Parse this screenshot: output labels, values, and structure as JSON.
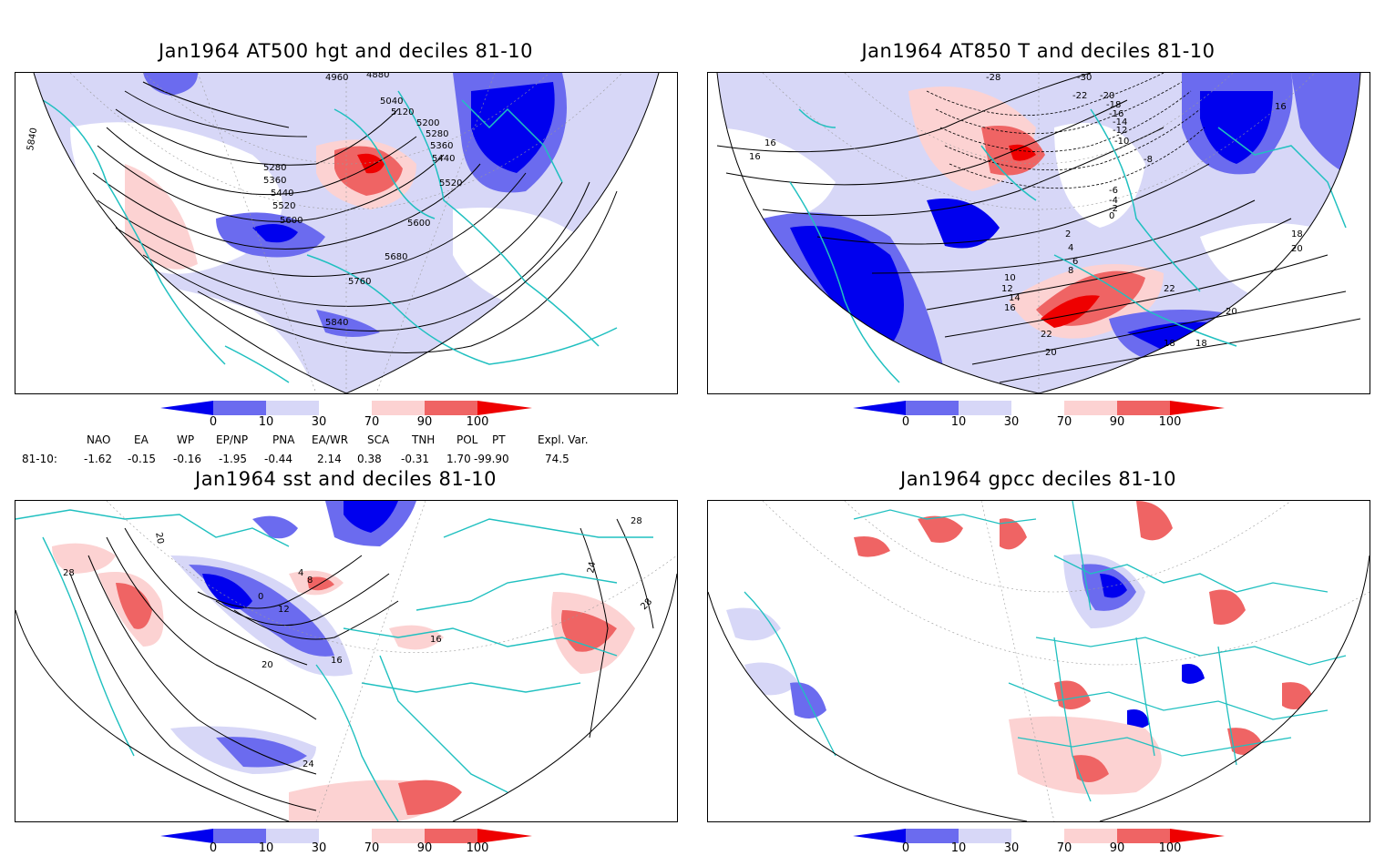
{
  "panels": {
    "top_left": {
      "title": "Jan1964 AT500 hgt and deciles 81-10",
      "contour_labels": [
        "4960",
        "4880",
        "5040",
        "5120",
        "5200",
        "5280",
        "5360",
        "5440",
        "5520",
        "5600",
        "5680",
        "5760",
        "5840",
        "5280",
        "5360",
        "5440",
        "5520",
        "5600",
        "5840"
      ]
    },
    "top_right": {
      "title": "Jan1964 AT850 T and deciles 81-10",
      "contour_labels": [
        "-28",
        "-30",
        "-22",
        "-20",
        "-18",
        "-16",
        "-14",
        "-12",
        "-10",
        "-8",
        "-6",
        "-4",
        "-2",
        "0",
        "2",
        "4",
        "6",
        "8",
        "10",
        "12",
        "14",
        "16",
        "16",
        "16",
        "18",
        "20",
        "20",
        "22",
        "22",
        "18",
        "18",
        "20",
        "16"
      ]
    },
    "bottom_left": {
      "title": "Jan1964 sst and deciles 81-10",
      "contour_labels": [
        "28",
        "20",
        "0",
        "4",
        "8",
        "12",
        "16",
        "16",
        "20",
        "24",
        "28",
        "24",
        "28"
      ]
    },
    "bottom_right": {
      "title": "Jan1964 gpcc deciles 81-10"
    }
  },
  "colorbar": {
    "ticks": [
      "0",
      "10",
      "30",
      "70",
      "90",
      "100"
    ],
    "colors": [
      "#0000ee",
      "#6b6bef",
      "#d7d7f7",
      "#ffffff",
      "#fcd2d2",
      "#ef6464",
      "#ee0000"
    ]
  },
  "indices": {
    "headers": [
      "NAO",
      "EA",
      "WP",
      "EP/NP",
      "PNA",
      "EA/WR",
      "SCA",
      "TNH",
      "POL",
      "PT",
      "Expl. Var."
    ],
    "row_label": "81-10:",
    "values": [
      "-1.62",
      "-0.15",
      "-0.16",
      "-1.95",
      "-0.44",
      "2.14",
      "0.38",
      "-0.31",
      "1.70",
      "-99.90",
      "74.5"
    ]
  }
}
